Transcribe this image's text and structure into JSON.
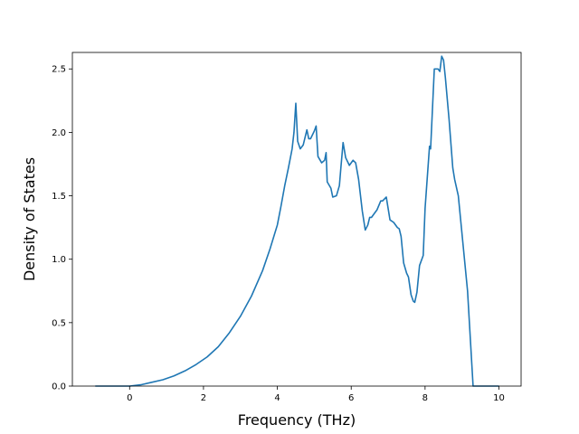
{
  "chart_data": {
    "type": "line",
    "title": "",
    "xlabel": "Frequency (THz)",
    "ylabel": "Density of States",
    "xlim": [
      -1.55,
      10.6
    ],
    "ylim": [
      0,
      2.63
    ],
    "xticks": [
      0,
      2,
      4,
      6,
      8,
      10
    ],
    "xtick_labels": [
      "0",
      "2",
      "4",
      "6",
      "8",
      "10"
    ],
    "yticks": [
      0.0,
      0.5,
      1.0,
      1.5,
      2.0,
      2.5
    ],
    "ytick_labels": [
      "0.0",
      "0.5",
      "1.0",
      "1.5",
      "2.0",
      "2.5"
    ],
    "grid": false,
    "legend": "none",
    "colors": {
      "line": "#1f77b4",
      "axes": "#000000",
      "background": "#ffffff"
    },
    "series": [
      {
        "x": [
          -0.93,
          0.0,
          0.3,
          0.6,
          0.9,
          1.2,
          1.5,
          1.8,
          2.1,
          2.4,
          2.7,
          3.0,
          3.3,
          3.6,
          3.8,
          4.0,
          4.1,
          4.2,
          4.3,
          4.4,
          4.45,
          4.5,
          4.55,
          4.62,
          4.7,
          4.8,
          4.85,
          4.9,
          5.0,
          5.05,
          5.1,
          5.2,
          5.28,
          5.32,
          5.35,
          5.45,
          5.5,
          5.6,
          5.68,
          5.72,
          5.78,
          5.85,
          5.95,
          6.05,
          6.12,
          6.2,
          6.3,
          6.38,
          6.45,
          6.5,
          6.55,
          6.65,
          6.7,
          6.8,
          6.85,
          6.95,
          7.05,
          7.15,
          7.25,
          7.3,
          7.35,
          7.42,
          7.5,
          7.55,
          7.62,
          7.68,
          7.72,
          7.78,
          7.85,
          7.95,
          8.0,
          8.12,
          8.15,
          8.25,
          8.3,
          8.35,
          8.4,
          8.45,
          8.5,
          8.55,
          8.65,
          8.75,
          8.8,
          8.9,
          9.05,
          9.15,
          9.3,
          9.6,
          10.0
        ],
        "y": [
          0.0,
          0.0,
          0.01,
          0.03,
          0.05,
          0.08,
          0.12,
          0.17,
          0.23,
          0.31,
          0.42,
          0.55,
          0.71,
          0.91,
          1.08,
          1.27,
          1.42,
          1.58,
          1.72,
          1.87,
          2.0,
          2.23,
          1.93,
          1.87,
          1.9,
          2.02,
          1.95,
          1.95,
          2.01,
          2.05,
          1.81,
          1.76,
          1.78,
          1.84,
          1.61,
          1.56,
          1.49,
          1.5,
          1.58,
          1.72,
          1.92,
          1.8,
          1.74,
          1.78,
          1.76,
          1.63,
          1.38,
          1.23,
          1.27,
          1.33,
          1.33,
          1.37,
          1.39,
          1.46,
          1.46,
          1.49,
          1.31,
          1.29,
          1.25,
          1.24,
          1.18,
          0.97,
          0.89,
          0.86,
          0.72,
          0.67,
          0.66,
          0.74,
          0.95,
          1.03,
          1.4,
          1.89,
          1.87,
          2.5,
          2.5,
          2.5,
          2.48,
          2.6,
          2.57,
          2.43,
          2.1,
          1.72,
          1.63,
          1.5,
          1.05,
          0.75,
          0.0,
          0.0,
          0.0
        ]
      }
    ]
  }
}
